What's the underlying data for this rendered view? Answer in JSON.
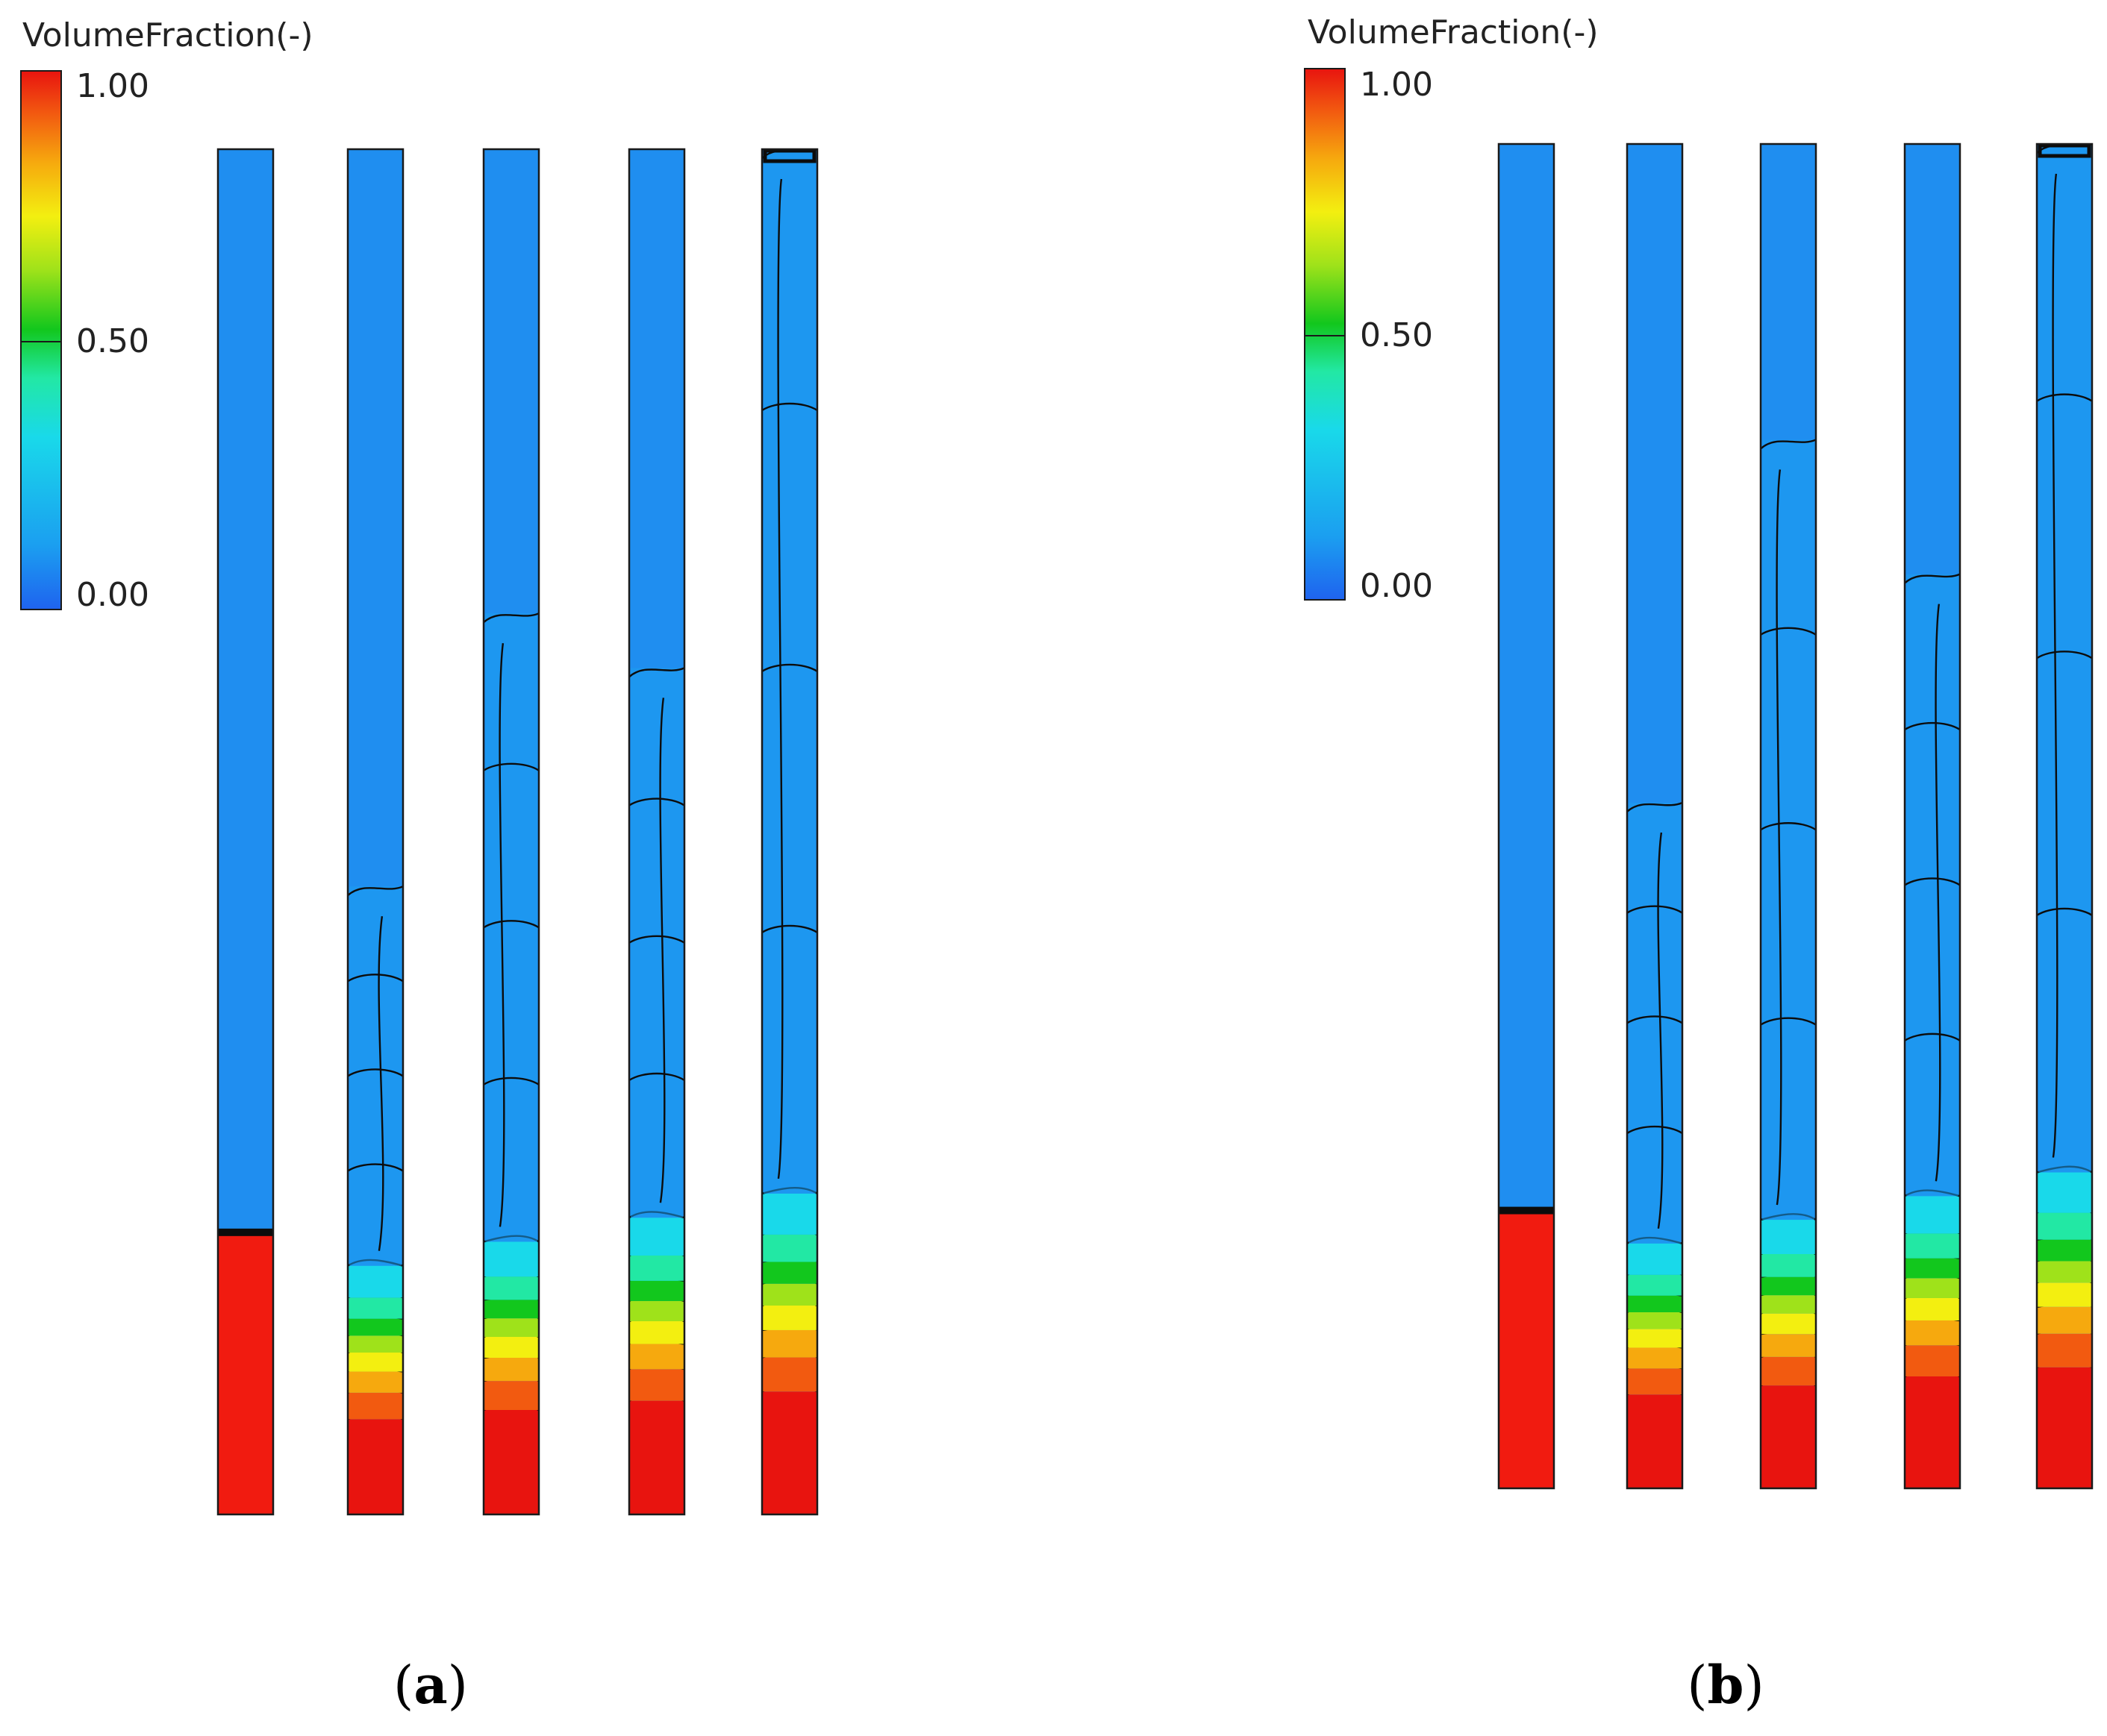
{
  "panels": [
    {
      "legend": {
        "title": "VolumeFraction(-)",
        "ticks": [
          "1.00",
          "0.50",
          "0.00"
        ],
        "range": [
          0,
          1
        ]
      },
      "label": {
        "open": "(",
        "letter": "a",
        "close": ")"
      },
      "tubes": [
        {
          "interface": 0.205
        },
        {
          "interface": 0.46,
          "profile": "gradient"
        },
        {
          "interface": 0.66,
          "profile": "gradient"
        },
        {
          "interface": 0.62,
          "profile": "gradient"
        },
        {
          "interface": 1.0,
          "profile": "gradient"
        }
      ]
    },
    {
      "legend": {
        "title": "VolumeFraction(-)",
        "ticks": [
          "1.00",
          "0.50",
          "0.00"
        ],
        "range": [
          0,
          1
        ]
      },
      "label": {
        "open": "(",
        "letter": "b",
        "close": ")"
      },
      "tubes": [
        {
          "interface": 0.205
        },
        {
          "interface": 0.51,
          "profile": "gradient"
        },
        {
          "interface": 0.78,
          "profile": "gradient"
        },
        {
          "interface": 0.68,
          "profile": "gradient"
        },
        {
          "interface": 1.0,
          "profile": "gradient"
        }
      ]
    }
  ],
  "colors": {
    "colormap": [
      "#1f63ef",
      "#1b9ff0",
      "#19d9ea",
      "#22e8a4",
      "#12c71d",
      "#9fe21a",
      "#f3ef10",
      "#f6a90e",
      "#f25a10",
      "#e8140f"
    ],
    "water": "#1f8ef0",
    "filled": "#f11b10",
    "contour": "#0c0c0c"
  }
}
